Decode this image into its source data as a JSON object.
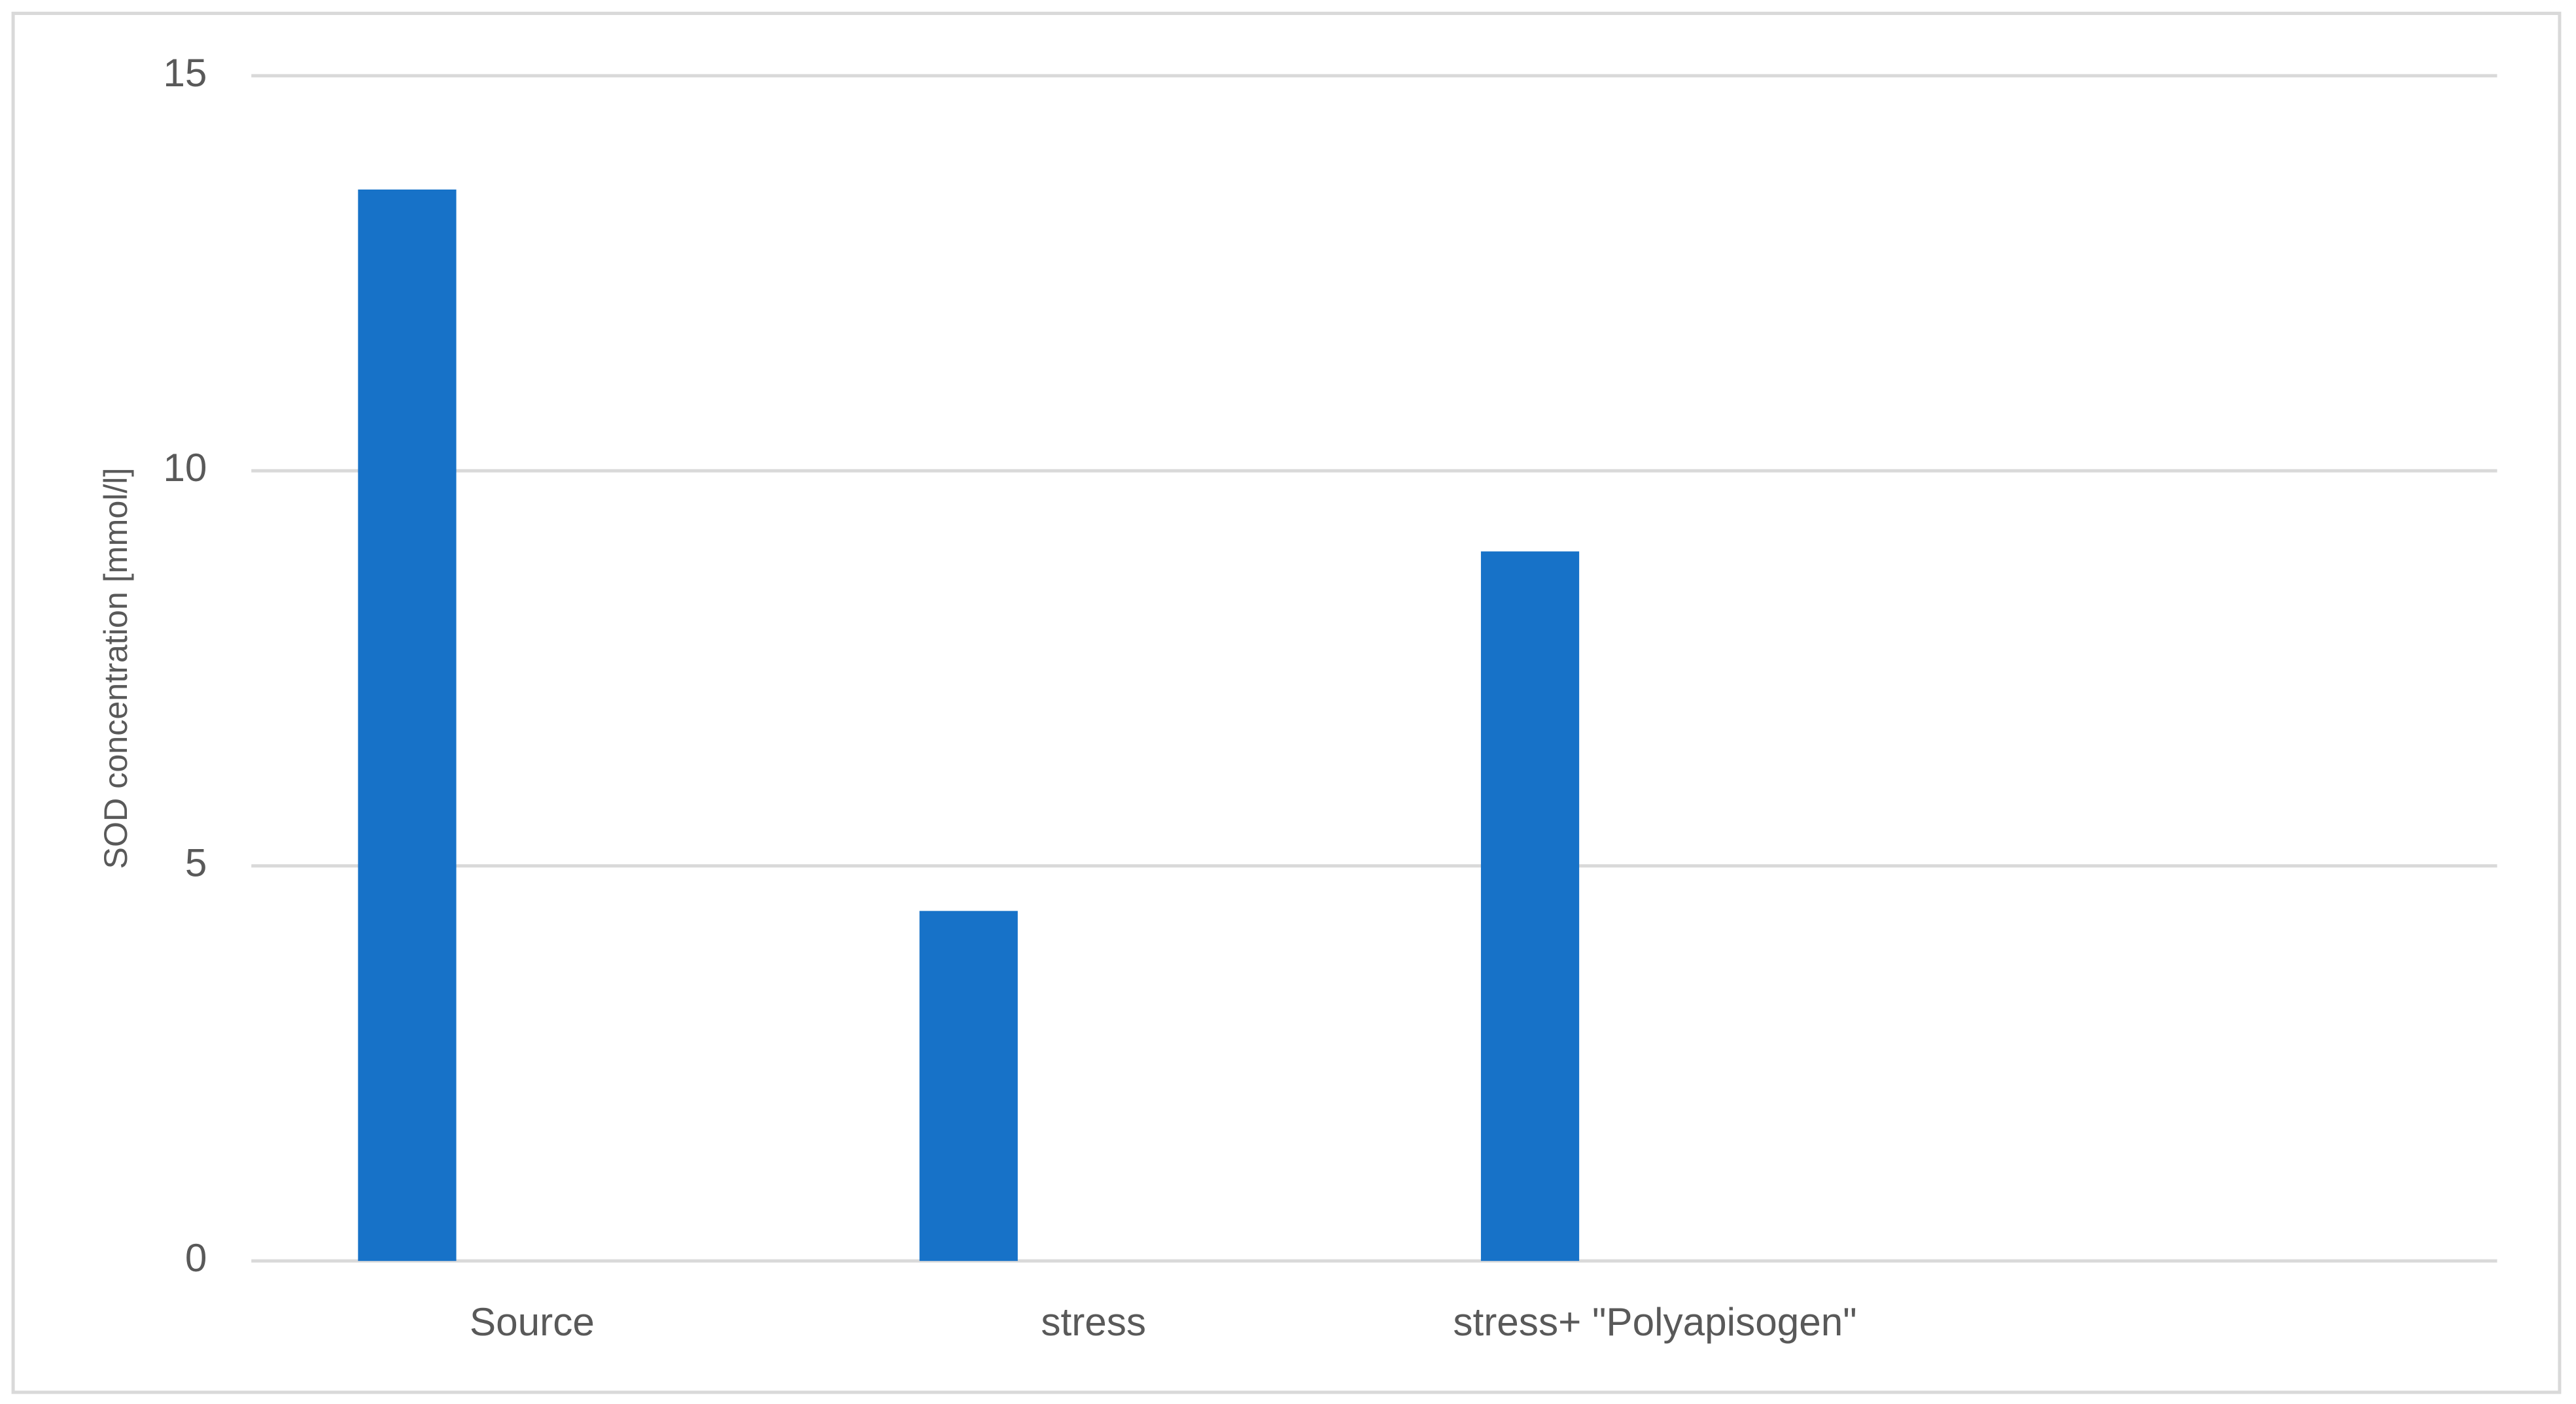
{
  "chart_data": {
    "type": "bar",
    "y_label": "SOD concentration [mmol/l]",
    "categories": [
      "Source",
      "stress",
      "stress+ \"Polyapisogen\"",
      null
    ],
    "values": [
      13.56,
      4.43,
      8.98,
      null
    ],
    "color": "#1772c8",
    "ylim": [
      0,
      15
    ],
    "yticks": [
      0,
      5,
      10,
      15
    ],
    "grid": true
  }
}
